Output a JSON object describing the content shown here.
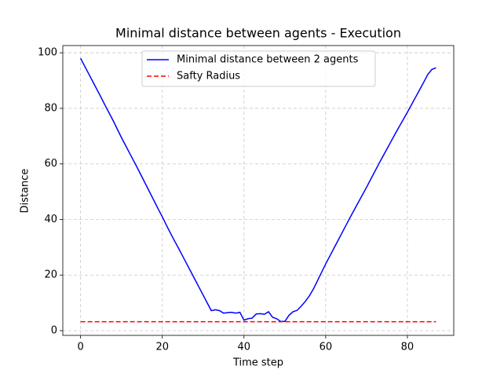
{
  "chart_data": {
    "type": "line",
    "title": "Minimal distance between agents - Execution",
    "xlabel": "Time step",
    "ylabel": "Distance",
    "xlim": [
      -4.35,
      91.35
    ],
    "ylim": [
      -1.7,
      102.6
    ],
    "xticks": [
      0,
      20,
      40,
      60,
      80
    ],
    "yticks": [
      0,
      20,
      40,
      60,
      80,
      100
    ],
    "grid": true,
    "legend": "upper center",
    "series": [
      {
        "name": "Minimal distance between 2 agents",
        "color": "#0000ff",
        "dash": "solid",
        "x": [
          0,
          1,
          2,
          3,
          4,
          5,
          6,
          7,
          8,
          9,
          10,
          11,
          12,
          13,
          14,
          15,
          16,
          17,
          18,
          19,
          20,
          21,
          22,
          23,
          24,
          25,
          26,
          27,
          28,
          29,
          30,
          31,
          32,
          33,
          34,
          35,
          36,
          37,
          38,
          39,
          40,
          41,
          42,
          43,
          44,
          45,
          46,
          47,
          48,
          49,
          50,
          51,
          52,
          53,
          54,
          55,
          56,
          57,
          58,
          59,
          60,
          61,
          62,
          63,
          64,
          65,
          66,
          67,
          68,
          69,
          70,
          71,
          72,
          73,
          74,
          75,
          76,
          77,
          78,
          79,
          80,
          81,
          82,
          83,
          84,
          85,
          86,
          87
        ],
        "values": [
          98,
          95.2,
          92.4,
          89.6,
          86.8,
          84,
          81.1,
          78.3,
          75.5,
          72.5,
          69.5,
          66.7,
          63.9,
          61.1,
          58.3,
          55.4,
          52.5,
          49.6,
          46.7,
          43.8,
          41,
          38,
          35.1,
          32.3,
          29.6,
          26.8,
          24,
          21.2,
          18.4,
          15.6,
          12.8,
          10,
          7.2,
          7.5,
          7.2,
          6.3,
          6.5,
          6.6,
          6.3,
          6.6,
          3.8,
          4.3,
          4.5,
          6.0,
          6.1,
          5.9,
          6.8,
          4.8,
          4.3,
          3.3,
          3.3,
          5.5,
          6.8,
          7.3,
          8.8,
          10.5,
          12.5,
          15,
          18,
          21,
          24,
          26.8,
          29.6,
          32.4,
          35.2,
          38,
          40.8,
          43.5,
          46.2,
          48.9,
          51.6,
          54.4,
          57.2,
          60,
          62.7,
          65.4,
          68.1,
          70.8,
          73.4,
          76,
          78.6,
          81.3,
          84,
          86.7,
          89.4,
          92.2,
          94,
          94.6
        ]
      },
      {
        "name": "Safty Radius",
        "color": "#ff0000",
        "dash": "dashed",
        "x": [
          0,
          87
        ],
        "values": [
          3.2,
          3.2
        ]
      }
    ]
  }
}
